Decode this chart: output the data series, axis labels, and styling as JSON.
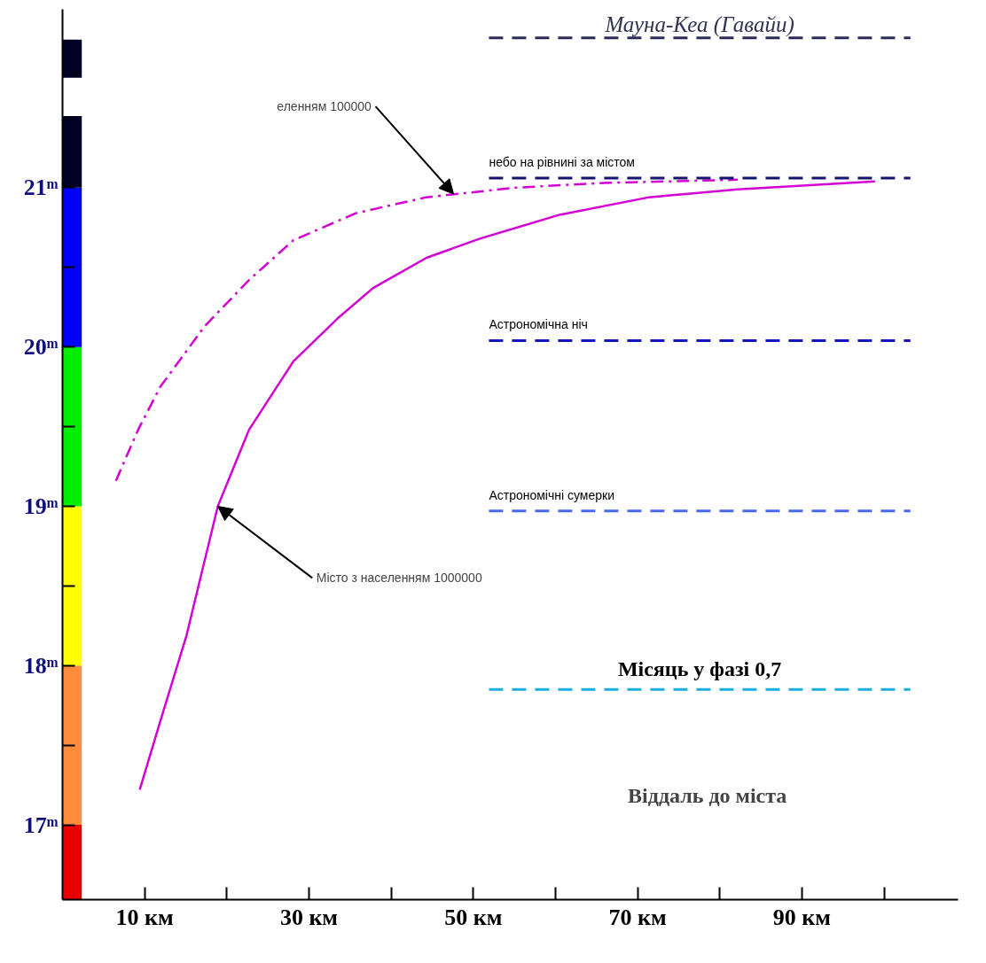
{
  "chart_data": {
    "type": "line",
    "xlabel": "Віддаль до міста",
    "xlim": [
      0,
      109
    ],
    "ylim": [
      16.53,
      22.12
    ],
    "xticks": [
      {
        "value": 10,
        "label": "10 км"
      },
      {
        "value": 20,
        "label": null
      },
      {
        "value": 30,
        "label": "30 км"
      },
      {
        "value": 40,
        "label": null
      },
      {
        "value": 50,
        "label": "50 км"
      },
      {
        "value": 60,
        "label": null
      },
      {
        "value": 70,
        "label": "70 км"
      },
      {
        "value": 80,
        "label": null
      },
      {
        "value": 90,
        "label": "90 км"
      },
      {
        "value": 100,
        "label": null
      }
    ],
    "yticks": [
      {
        "value": 17,
        "label": "17ᵐ"
      },
      {
        "value": 17.5,
        "label": null
      },
      {
        "value": 18,
        "label": "18ᵐ"
      },
      {
        "value": 18.5,
        "label": null
      },
      {
        "value": 19,
        "label": "19ᵐ"
      },
      {
        "value": 19.5,
        "label": null
      },
      {
        "value": 20,
        "label": "20ᵐ"
      },
      {
        "value": 20.5,
        "label": null
      },
      {
        "value": 21,
        "label": "21ᵐ"
      }
    ],
    "grid": false,
    "legend": false,
    "marker": "none",
    "series": [
      {
        "color": "#d400d4",
        "line_style": "solid",
        "x": [
          9.4,
          11.9,
          15.1,
          18.9,
          22.7,
          28.1,
          33.5,
          37.8,
          44.3,
          50.8,
          60.5,
          71.4,
          82.2,
          98.9
        ],
        "values": [
          17.22,
          17.65,
          18.19,
          19.0,
          19.48,
          19.91,
          20.18,
          20.37,
          20.56,
          20.68,
          20.83,
          20.94,
          20.99,
          21.04
        ]
      },
      {
        "color": "#d400d4",
        "line_style": "dashdot",
        "x": [
          6.5,
          9.2,
          11.9,
          17.3,
          22.7,
          28.1,
          35.7,
          44.3,
          55.1,
          65.9,
          82.2
        ],
        "values": [
          19.16,
          19.48,
          19.75,
          20.13,
          20.42,
          20.67,
          20.84,
          20.94,
          21.0,
          21.03,
          21.05
        ]
      },
      {
        "name": "Мауна-Кеа (Гавайи)",
        "color": "#2b2b55",
        "line_style": "dashed",
        "x": [
          51.9,
          103.2
        ],
        "values": [
          21.94,
          21.94
        ]
      },
      {
        "name": "небо на рівнині за містом",
        "color": "#141470",
        "line_style": "dashed",
        "x": [
          51.9,
          103.2
        ],
        "values": [
          21.06,
          21.06
        ]
      },
      {
        "name": "Астрономічна ніч",
        "color": "#1515c0",
        "line_style": "dashed",
        "x": [
          51.9,
          103.2
        ],
        "values": [
          20.04,
          20.04
        ]
      },
      {
        "name": "Астрономічні сумерки",
        "color": "#4a68ee",
        "line_style": "dashed",
        "x": [
          51.9,
          103.2
        ],
        "values": [
          18.97,
          18.97
        ]
      },
      {
        "name": "Місяць у фазі 0,7",
        "color": "#1aaee0",
        "line_style": "dashed",
        "x": [
          51.9,
          103.2
        ],
        "values": [
          17.85,
          17.85
        ]
      },
      {
        "type": "bar",
        "color": "#e80000",
        "x": [
          1.2
        ],
        "base": [
          16.53
        ],
        "values": [
          0.47
        ]
      },
      {
        "type": "bar",
        "color": "#ff8c3c",
        "x": [
          1.2
        ],
        "base": [
          17
        ],
        "values": [
          1
        ]
      },
      {
        "type": "bar",
        "color": "#ffff00",
        "x": [
          1.2
        ],
        "base": [
          18
        ],
        "values": [
          1
        ]
      },
      {
        "type": "bar",
        "color": "#00ee00",
        "x": [
          1.2
        ],
        "base": [
          19
        ],
        "values": [
          1
        ]
      },
      {
        "type": "bar",
        "color": "#0000ff",
        "x": [
          1.2
        ],
        "base": [
          20
        ],
        "values": [
          1
        ]
      },
      {
        "type": "bar",
        "color": "#000022",
        "x": [
          1.2
        ],
        "base": [
          21
        ],
        "values": [
          0.45
        ]
      },
      {
        "type": "bar",
        "color": "#000022",
        "x": [
          1.2
        ],
        "base": [
          21.69
        ],
        "values": [
          0.24
        ]
      }
    ],
    "annotations": [
      {
        "text": "еленням 100000",
        "x": 47.6,
        "y": 20.96
      },
      {
        "text": "Місто з населенням 1000000",
        "x": 18.9,
        "y": 19.0
      }
    ]
  }
}
